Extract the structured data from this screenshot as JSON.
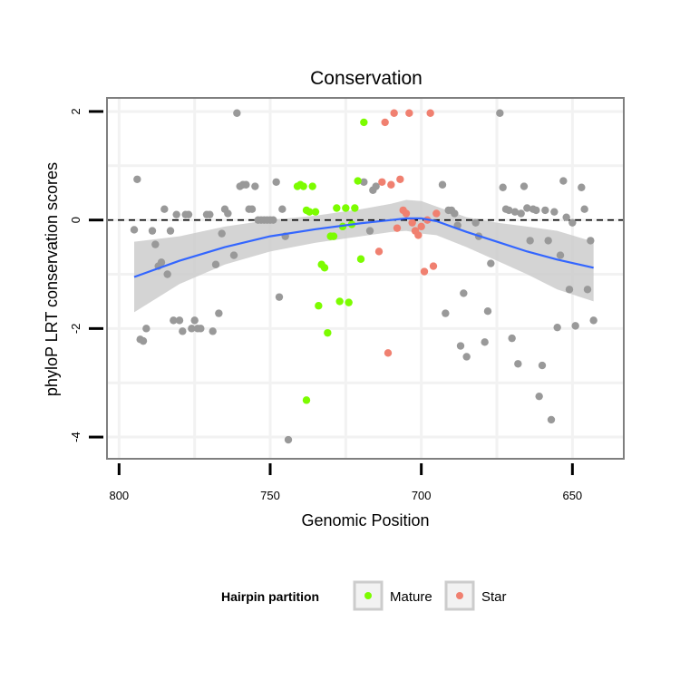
{
  "chart_data": {
    "type": "scatter",
    "title": "Conservation",
    "xlabel": "Genomic Position",
    "ylabel": "phyloP LRT conservation scores",
    "x_reversed": true,
    "xlim": [
      804,
      633
    ],
    "ylim": [
      -4.4,
      2.25
    ],
    "xticks": [
      800,
      750,
      700,
      650
    ],
    "yticks": [
      2,
      0,
      -2,
      -4
    ],
    "reference_line": {
      "y": 0,
      "style": "dashed"
    },
    "legend": {
      "title": "Hairpin partition",
      "position": "bottom",
      "entries": [
        {
          "label": "Mature",
          "color": "#7CFC00"
        },
        {
          "label": "Star",
          "color": "#F08070"
        }
      ]
    },
    "colors": {
      "other": "#999999",
      "Mature": "#7CFC00",
      "Star": "#F08070",
      "smooth": "#3366FF",
      "band": "#cccccc"
    },
    "series": [
      {
        "name": "Other",
        "points": [
          [
            795,
            -0.18
          ],
          [
            794,
            0.75
          ],
          [
            793,
            -2.2
          ],
          [
            792,
            -2.23
          ],
          [
            791,
            -2.0
          ],
          [
            789,
            -0.2
          ],
          [
            788,
            -0.45
          ],
          [
            787,
            -0.85
          ],
          [
            786,
            -0.78
          ],
          [
            785,
            0.2
          ],
          [
            784,
            -1.0
          ],
          [
            783,
            -0.2
          ],
          [
            782,
            -1.85
          ],
          [
            781,
            0.1
          ],
          [
            780,
            -1.85
          ],
          [
            779,
            -2.05
          ],
          [
            778,
            0.1
          ],
          [
            777,
            0.1
          ],
          [
            776,
            -2.0
          ],
          [
            775,
            -1.85
          ],
          [
            774,
            -2.0
          ],
          [
            773,
            -2.0
          ],
          [
            771,
            0.1
          ],
          [
            770,
            0.1
          ],
          [
            769,
            -2.05
          ],
          [
            768,
            -0.82
          ],
          [
            767,
            -1.72
          ],
          [
            766,
            -0.25
          ],
          [
            765,
            0.2
          ],
          [
            764,
            0.12
          ],
          [
            762,
            -0.65
          ],
          [
            761,
            1.97
          ],
          [
            760,
            0.62
          ],
          [
            759,
            0.65
          ],
          [
            758,
            0.65
          ],
          [
            757,
            0.2
          ],
          [
            756,
            0.2
          ],
          [
            755,
            0.62
          ],
          [
            754,
            0.0
          ],
          [
            753,
            0.0
          ],
          [
            752,
            0.0
          ],
          [
            751,
            0.0
          ],
          [
            750,
            0.0
          ],
          [
            749,
            0.0
          ],
          [
            748,
            0.7
          ],
          [
            747,
            -1.42
          ],
          [
            746,
            0.2
          ],
          [
            745,
            -0.3
          ],
          [
            744,
            -4.05
          ],
          [
            719,
            0.7
          ],
          [
            717,
            -0.2
          ],
          [
            716,
            0.55
          ],
          [
            715,
            0.62
          ],
          [
            693,
            0.65
          ],
          [
            692,
            -1.72
          ],
          [
            691,
            0.18
          ],
          [
            690,
            0.18
          ],
          [
            689,
            0.12
          ],
          [
            688,
            -0.1
          ],
          [
            687,
            -2.32
          ],
          [
            686,
            -1.35
          ],
          [
            685,
            -2.52
          ],
          [
            682,
            -0.05
          ],
          [
            681,
            -0.3
          ],
          [
            679,
            -2.25
          ],
          [
            678,
            -1.68
          ],
          [
            677,
            -0.8
          ],
          [
            674,
            1.97
          ],
          [
            673,
            0.6
          ],
          [
            672,
            0.2
          ],
          [
            671,
            0.18
          ],
          [
            670,
            -2.18
          ],
          [
            669,
            0.15
          ],
          [
            668,
            -2.65
          ],
          [
            667,
            0.12
          ],
          [
            666,
            0.62
          ],
          [
            665,
            0.22
          ],
          [
            664,
            -0.38
          ],
          [
            663,
            0.2
          ],
          [
            662,
            0.18
          ],
          [
            661,
            -3.25
          ],
          [
            660,
            -2.68
          ],
          [
            659,
            0.18
          ],
          [
            658,
            -0.38
          ],
          [
            657,
            -3.68
          ],
          [
            656,
            0.15
          ],
          [
            655,
            -1.98
          ],
          [
            654,
            -0.65
          ],
          [
            653,
            0.72
          ],
          [
            652,
            0.05
          ],
          [
            651,
            -1.28
          ],
          [
            650,
            -0.05
          ],
          [
            649,
            -1.95
          ],
          [
            647,
            0.6
          ],
          [
            646,
            0.2
          ],
          [
            645,
            -1.28
          ],
          [
            644,
            -0.38
          ],
          [
            643,
            -1.85
          ]
        ]
      },
      {
        "name": "Mature",
        "points": [
          [
            741,
            0.62
          ],
          [
            740,
            0.65
          ],
          [
            739,
            0.62
          ],
          [
            738,
            0.18
          ],
          [
            737,
            0.15
          ],
          [
            736,
            0.62
          ],
          [
            735,
            0.15
          ],
          [
            734,
            -1.58
          ],
          [
            733,
            -0.82
          ],
          [
            732,
            -0.88
          ],
          [
            731,
            -2.08
          ],
          [
            730,
            -0.3
          ],
          [
            729,
            -0.3
          ],
          [
            728,
            0.22
          ],
          [
            727,
            -1.5
          ],
          [
            726,
            -0.12
          ],
          [
            725,
            0.22
          ],
          [
            724,
            -1.52
          ],
          [
            723,
            -0.08
          ],
          [
            722,
            0.22
          ],
          [
            721,
            0.72
          ],
          [
            720,
            -0.72
          ],
          [
            719,
            1.8
          ],
          [
            738,
            -3.32
          ]
        ]
      },
      {
        "name": "Star",
        "points": [
          [
            714,
            -0.58
          ],
          [
            713,
            0.7
          ],
          [
            712,
            1.8
          ],
          [
            711,
            -2.45
          ],
          [
            710,
            0.65
          ],
          [
            709,
            1.97
          ],
          [
            708,
            -0.15
          ],
          [
            707,
            0.75
          ],
          [
            706,
            0.18
          ],
          [
            705,
            0.12
          ],
          [
            704,
            1.97
          ],
          [
            703,
            -0.05
          ],
          [
            702,
            -0.2
          ],
          [
            701,
            -0.28
          ],
          [
            700,
            -0.12
          ],
          [
            699,
            -0.95
          ],
          [
            698,
            0.0
          ],
          [
            697,
            1.97
          ],
          [
            696,
            -0.85
          ],
          [
            695,
            0.12
          ]
        ]
      }
    ],
    "smooth": {
      "name": "loess",
      "points": [
        [
          795,
          -1.05
        ],
        [
          780,
          -0.75
        ],
        [
          765,
          -0.5
        ],
        [
          750,
          -0.3
        ],
        [
          735,
          -0.17
        ],
        [
          720,
          -0.06
        ],
        [
          710,
          0.0
        ],
        [
          705,
          0.03
        ],
        [
          700,
          0.03
        ],
        [
          695,
          -0.02
        ],
        [
          685,
          -0.22
        ],
        [
          675,
          -0.4
        ],
        [
          665,
          -0.58
        ],
        [
          655,
          -0.73
        ],
        [
          643,
          -0.88
        ]
      ],
      "band_upper": [
        [
          795,
          -0.4
        ],
        [
          780,
          -0.3
        ],
        [
          765,
          -0.12
        ],
        [
          750,
          0.0
        ],
        [
          735,
          0.08
        ],
        [
          720,
          0.2
        ],
        [
          710,
          0.3
        ],
        [
          705,
          0.37
        ],
        [
          700,
          0.35
        ],
        [
          695,
          0.25
        ],
        [
          685,
          0.05
        ],
        [
          675,
          -0.05
        ],
        [
          665,
          -0.12
        ],
        [
          655,
          -0.2
        ],
        [
          643,
          -0.4
        ]
      ],
      "band_lower": [
        [
          795,
          -1.7
        ],
        [
          780,
          -1.18
        ],
        [
          765,
          -0.82
        ],
        [
          750,
          -0.58
        ],
        [
          735,
          -0.42
        ],
        [
          720,
          -0.3
        ],
        [
          710,
          -0.22
        ],
        [
          705,
          -0.2
        ],
        [
          700,
          -0.25
        ],
        [
          695,
          -0.28
        ],
        [
          685,
          -0.5
        ],
        [
          675,
          -0.75
        ],
        [
          665,
          -1.0
        ],
        [
          655,
          -1.28
        ],
        [
          643,
          -1.5
        ]
      ]
    }
  }
}
